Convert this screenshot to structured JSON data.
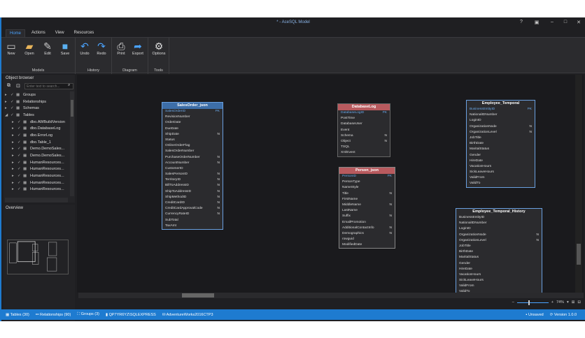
{
  "window": {
    "title": "* - AceSQL Model"
  },
  "tabs": [
    "Home",
    "Actions",
    "View",
    "Resources"
  ],
  "ribbon": {
    "groups": [
      {
        "label": "Models",
        "buttons": [
          {
            "label": "New",
            "icon": "new-icon"
          },
          {
            "label": "Open",
            "icon": "folder-icon"
          },
          {
            "label": "Edit",
            "icon": "edit-icon"
          },
          {
            "label": "Save",
            "icon": "save-icon"
          }
        ]
      },
      {
        "label": "History",
        "buttons": [
          {
            "label": "Undo",
            "icon": "undo-icon"
          },
          {
            "label": "Redo",
            "icon": "redo-icon"
          }
        ]
      },
      {
        "label": "Diagram",
        "buttons": [
          {
            "label": "Print",
            "icon": "print-icon"
          },
          {
            "label": "Export",
            "icon": "export-icon"
          }
        ]
      },
      {
        "label": "Tools",
        "buttons": [
          {
            "label": "Options",
            "icon": "gear-icon"
          }
        ]
      }
    ]
  },
  "object_browser": {
    "title": "Object browser",
    "search_placeholder": "Enter text to search...",
    "items": [
      {
        "label": "Groups",
        "level": 0
      },
      {
        "label": "Relationships",
        "level": 0
      },
      {
        "label": "Schemas",
        "level": 0
      },
      {
        "label": "Tables",
        "level": 0,
        "expanded": true
      },
      {
        "label": "dbo.AWBuildVersion",
        "level": 1
      },
      {
        "label": "dbo.DatabaseLog",
        "level": 1
      },
      {
        "label": "dbo.ErrorLog",
        "level": 1
      },
      {
        "label": "dbo.Table_1",
        "level": 1
      },
      {
        "label": "Demo.DemoSales...",
        "level": 1
      },
      {
        "label": "Demo.DemoSales...",
        "level": 1
      },
      {
        "label": "HumanResources...",
        "level": 1
      },
      {
        "label": "HumanResources...",
        "level": 1
      },
      {
        "label": "HumanResources...",
        "level": 1
      },
      {
        "label": "HumanResources...",
        "level": 1
      },
      {
        "label": "HumanResources...",
        "level": 1
      }
    ]
  },
  "overview": {
    "title": "Overview"
  },
  "tables": [
    {
      "name": "SalesOrder_json",
      "header_color": "#3d6ea8",
      "columns": [
        [
          "SalesOrderID",
          "PK"
        ],
        [
          "RevisionNumber",
          ""
        ],
        [
          "OrderDate",
          ""
        ],
        [
          "DueDate",
          ""
        ],
        [
          "ShipDate",
          "N"
        ],
        [
          "Status",
          ""
        ],
        [
          "OnlineOrderFlag",
          ""
        ],
        [
          "SalesOrderNumber",
          ""
        ],
        [
          "PurchaseOrderNumber",
          "N"
        ],
        [
          "AccountNumber",
          "N"
        ],
        [
          "CustomerID",
          ""
        ],
        [
          "SalesPersonID",
          "N"
        ],
        [
          "TerritoryID",
          "N"
        ],
        [
          "BillToAddressID",
          "N"
        ],
        [
          "ShipToAddressID",
          "N"
        ],
        [
          "ShipMethodID",
          "N"
        ],
        [
          "CreditCardID",
          "N"
        ],
        [
          "CreditCardApprovalCode",
          "N"
        ],
        [
          "CurrencyRateID",
          "N"
        ],
        [
          "SubTotal",
          ""
        ],
        [
          "TaxAmt",
          ""
        ]
      ]
    },
    {
      "name": "DatabaseLog",
      "header_color": "#b85a5e",
      "columns": [
        [
          "DatabaseLogID",
          "PK"
        ],
        [
          "PostTime",
          ""
        ],
        [
          "DatabaseUser",
          ""
        ],
        [
          "Event",
          ""
        ],
        [
          "Schema",
          "N"
        ],
        [
          "Object",
          "N"
        ],
        [
          "TSQL",
          ""
        ],
        [
          "XmlEvent",
          ""
        ]
      ]
    },
    {
      "name": "Person_json",
      "header_color": "#b85a5e",
      "columns": [
        [
          "PersonID",
          "PK"
        ],
        [
          "PersonType",
          ""
        ],
        [
          "NameStyle",
          ""
        ],
        [
          "Title",
          "N"
        ],
        [
          "FirstName",
          ""
        ],
        [
          "MiddleName",
          "N"
        ],
        [
          "LastName",
          ""
        ],
        [
          "Suffix",
          "N"
        ],
        [
          "EmailPromotion",
          ""
        ],
        [
          "AdditionalContactInfo",
          "N"
        ],
        [
          "Demographics",
          "N"
        ],
        [
          "rowguid",
          ""
        ],
        [
          "ModifiedDate",
          ""
        ]
      ]
    },
    {
      "name": "Employee_Temporal",
      "header_color": "#2b2b2e",
      "columns": [
        [
          "BusinessEntityID",
          "PK"
        ],
        [
          "NationalIDNumber",
          ""
        ],
        [
          "LoginID",
          ""
        ],
        [
          "OrganizationNode",
          "N"
        ],
        [
          "OrganizationLevel",
          "N"
        ],
        [
          "JobTitle",
          ""
        ],
        [
          "BirthDate",
          ""
        ],
        [
          "MaritalStatus",
          ""
        ],
        [
          "Gender",
          ""
        ],
        [
          "HireDate",
          ""
        ],
        [
          "VacationHours",
          ""
        ],
        [
          "SickLeaveHours",
          ""
        ],
        [
          "ValidFrom",
          ""
        ],
        [
          "ValidTo",
          ""
        ]
      ]
    },
    {
      "name": "Employee_Temporal_History",
      "header_color": "#2b2b2e",
      "columns": [
        [
          "BusinessEntityID",
          ""
        ],
        [
          "NationalIDNumber",
          ""
        ],
        [
          "LoginID",
          ""
        ],
        [
          "OrganizationNode",
          "N"
        ],
        [
          "OrganizationLevel",
          "N"
        ],
        [
          "JobTitle",
          ""
        ],
        [
          "BirthDate",
          ""
        ],
        [
          "MaritalStatus",
          ""
        ],
        [
          "Gender",
          ""
        ],
        [
          "HireDate",
          ""
        ],
        [
          "VacationHours",
          ""
        ],
        [
          "SickLeaveHours",
          ""
        ],
        [
          "ValidFrom",
          ""
        ],
        [
          "ValidTo",
          ""
        ]
      ]
    }
  ],
  "zoom": {
    "level": "74%",
    "value": 74
  },
  "status": {
    "tables": "Tables (30)",
    "relationships": "Relationships (90)",
    "groups": "Groups (3)",
    "server": "QP7YR6YZ\\SQLEXPRESS",
    "database": "AdventureWorks2016CTP3",
    "saved": "Unsaved",
    "version": "Version 1.0.0"
  }
}
